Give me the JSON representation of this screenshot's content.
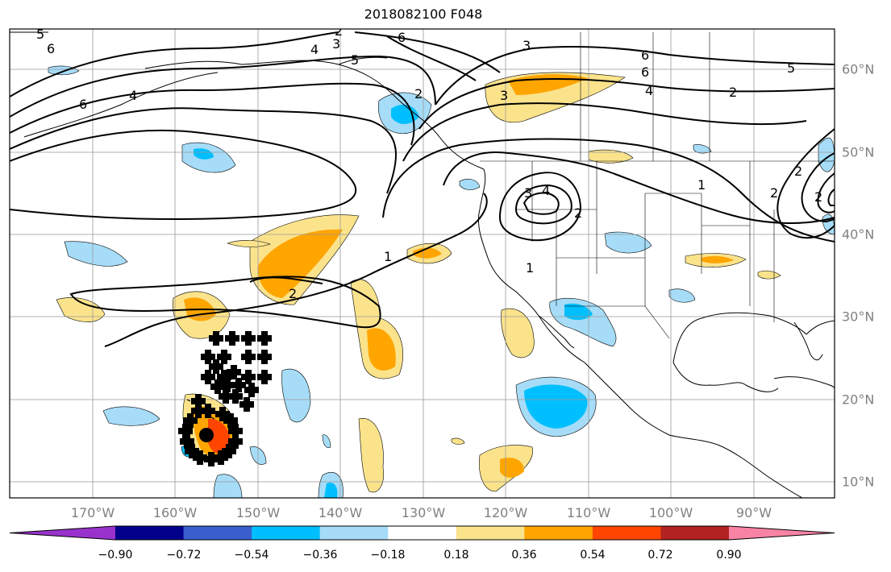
{
  "title": "2018082100 F048",
  "longitude_labels": [
    "170°W",
    "160°W",
    "150°W",
    "140°W",
    "130°W",
    "120°W",
    "110°W",
    "100°W",
    "90°W"
  ],
  "latitude_labels": [
    "60°N",
    "50°N",
    "40°N",
    "30°N",
    "20°N",
    "10°N"
  ],
  "colorbar": {
    "ticks": [
      "−0.90",
      "−0.72",
      "−0.54",
      "−0.36",
      "−0.18",
      "0.18",
      "0.36",
      "0.54",
      "0.72",
      "0.90"
    ],
    "colors": [
      "#9932cc",
      "#00008b",
      "#3a5fcd",
      "#00bfff",
      "#a6dcf7",
      "#ffffff",
      "#fbe38c",
      "#ffa500",
      "#ff4500",
      "#b22222",
      "#f883a4"
    ]
  },
  "contour_labels": [
    "5",
    "6",
    "6",
    "4",
    "6",
    "4",
    "3",
    "2",
    "5",
    "6",
    "3",
    "6",
    "4",
    "5",
    "2",
    "3",
    "2",
    "1",
    "4",
    "1",
    "2",
    "2",
    "1",
    "3",
    "2",
    "2",
    "2"
  ],
  "markers": {
    "plus_color": "#000000",
    "dot_color": "#000000"
  }
}
